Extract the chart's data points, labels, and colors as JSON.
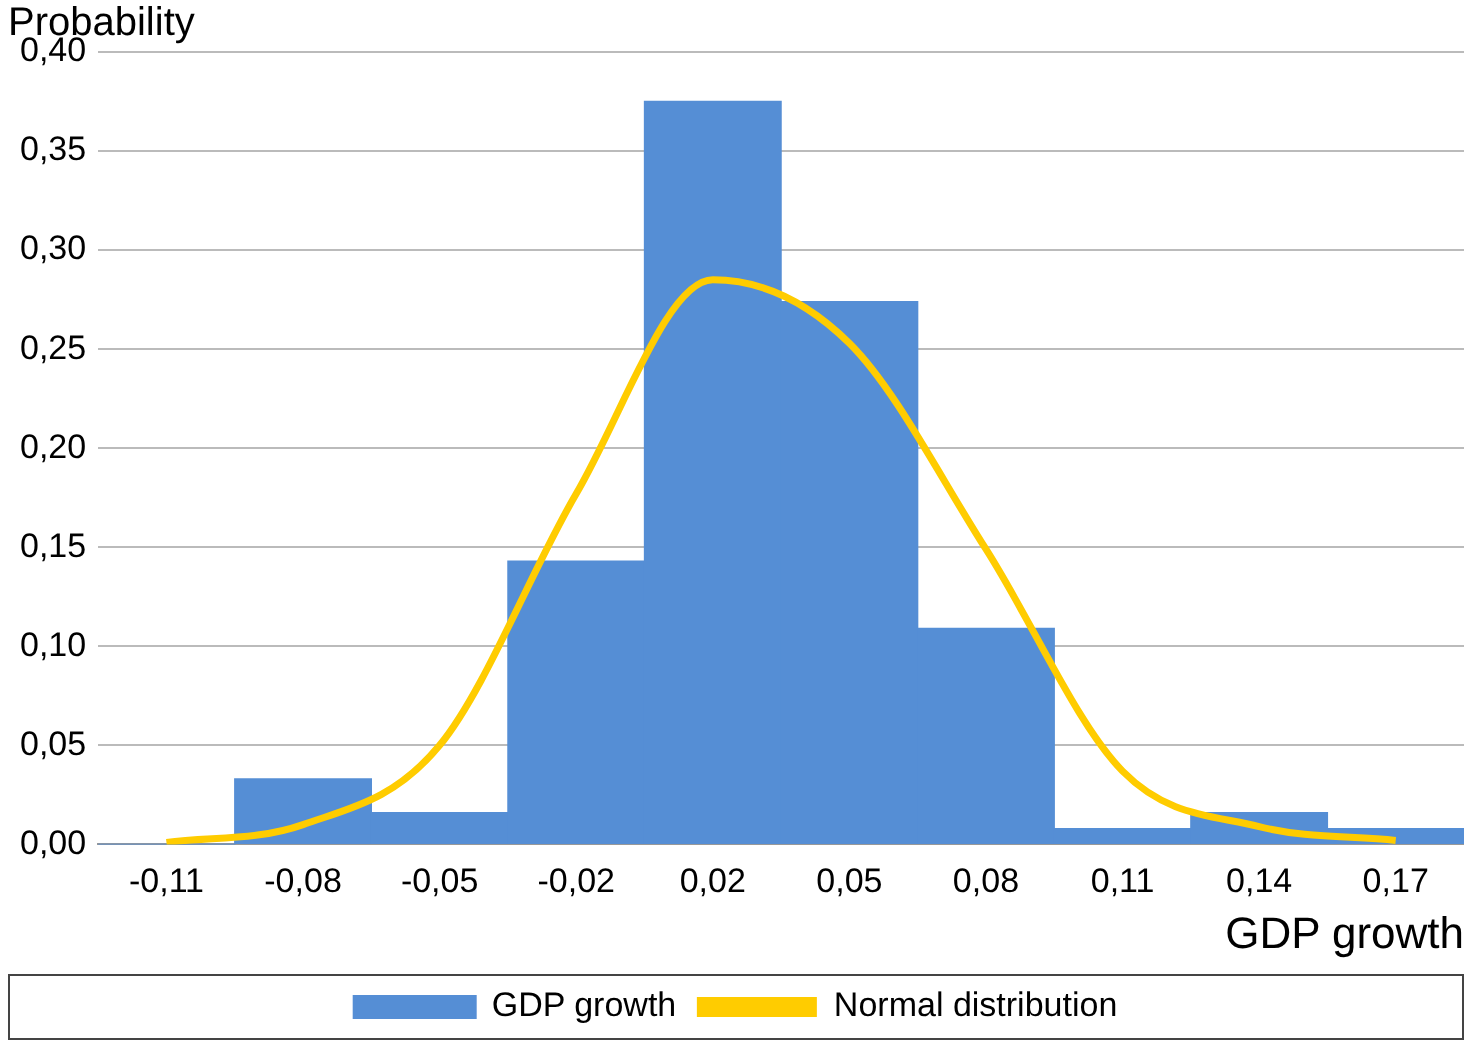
{
  "chart_data": {
    "type": "bar",
    "xlabel": "GDP growth",
    "ylabel": "Probability",
    "categories": [
      "-0,11",
      "-0,08",
      "-0,05",
      "-0,02",
      "0,02",
      "0,05",
      "0,08",
      "0,11",
      "0,14",
      "0,17"
    ],
    "series": [
      {
        "name": "GDP growth",
        "color": "#558ed5",
        "values": [
          0,
          0.033,
          0.016,
          0.143,
          0.375,
          0.274,
          0.109,
          0.008,
          0.016,
          0.008
        ]
      },
      {
        "name": "Normal distribution",
        "type": "line",
        "color": "#ffcc00",
        "values": [
          0.001,
          0.01,
          0.05,
          0.177,
          0.285,
          0.253,
          0.149,
          0.037,
          0.009,
          0.002
        ]
      }
    ],
    "ylim": [
      0,
      0.4
    ],
    "yticks": [
      {
        "value": 0,
        "label": "0,00"
      },
      {
        "value": 0.05,
        "label": "0,05"
      },
      {
        "value": 0.1,
        "label": "0,10"
      },
      {
        "value": 0.15,
        "label": "0,15"
      },
      {
        "value": 0.2,
        "label": "0,20"
      },
      {
        "value": 0.25,
        "label": "0,25"
      },
      {
        "value": 0.3,
        "label": "0,30"
      },
      {
        "value": 0.35,
        "label": "0,35"
      },
      {
        "value": 0.4,
        "label": "0,40"
      }
    ],
    "grid": "y",
    "legend": "bottom",
    "marker": "none",
    "line_style": "solid"
  }
}
